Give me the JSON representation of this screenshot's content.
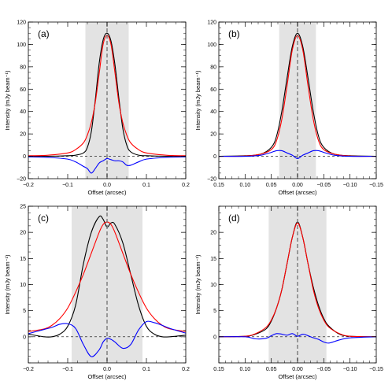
{
  "chart_data": [
    {
      "type": "line",
      "panel_label": "(a)",
      "xlabel": "Offset (arcsec)",
      "ylabel": "Intensity (mJy beam⁻¹)",
      "xlim": [
        -0.2,
        0.2
      ],
      "ylim": [
        -20,
        120
      ],
      "x_ticks": [
        -0.2,
        -0.1,
        0.0,
        0.1,
        0.2
      ],
      "x_tick_labels": [
        "−0.2",
        "−0.1",
        "0.0",
        "0.1",
        "0.2"
      ],
      "y_ticks": [
        -20,
        0,
        20,
        40,
        60,
        80,
        100,
        120
      ],
      "y_tick_labels": [
        "−20",
        "0",
        "20",
        "40",
        "60",
        "80",
        "100",
        "120"
      ],
      "shaded_region": [
        -0.055,
        0.055
      ],
      "vline_x": 0.0,
      "hline_y": 0.0,
      "series": [
        {
          "color": "#000000",
          "x": [
            -0.2,
            -0.15,
            -0.1,
            -0.08,
            -0.06,
            -0.05,
            -0.04,
            -0.03,
            -0.02,
            -0.01,
            0.0,
            0.01,
            0.02,
            0.03,
            0.04,
            0.05,
            0.06,
            0.08,
            0.1,
            0.15,
            0.2
          ],
          "y": [
            0,
            0,
            0.5,
            1,
            3,
            8,
            22,
            50,
            83,
            104,
            110,
            103,
            82,
            52,
            25,
            10,
            4,
            1,
            0.5,
            0,
            0
          ]
        },
        {
          "color": "#ff0000",
          "x": [
            -0.2,
            -0.15,
            -0.1,
            -0.08,
            -0.06,
            -0.05,
            -0.04,
            -0.03,
            -0.02,
            -0.01,
            0.0,
            0.01,
            0.02,
            0.03,
            0.04,
            0.05,
            0.06,
            0.08,
            0.1,
            0.15,
            0.2
          ],
          "y": [
            0.5,
            1,
            3,
            6,
            12,
            19,
            30,
            48,
            74,
            100,
            108,
            100,
            75,
            48,
            30,
            19,
            12,
            6,
            3,
            1,
            0.5
          ]
        },
        {
          "color": "#0000ff",
          "x": [
            -0.2,
            -0.15,
            -0.1,
            -0.08,
            -0.06,
            -0.05,
            -0.04,
            -0.03,
            -0.02,
            -0.01,
            0.0,
            0.01,
            0.02,
            0.03,
            0.04,
            0.05,
            0.06,
            0.08,
            0.1,
            0.15,
            0.2
          ],
          "y": [
            -0.5,
            -1,
            -2.5,
            -5,
            -9,
            -11,
            -15,
            -11,
            -6,
            -4,
            -2,
            -3,
            -4,
            -4,
            -5,
            -8,
            -8,
            -5,
            -2.5,
            -1,
            -0.5
          ]
        }
      ]
    },
    {
      "type": "line",
      "panel_label": "(b)",
      "xlabel": "Offset (arcsec)",
      "ylabel": "Intensity (mJy beam⁻¹)",
      "xlim": [
        0.15,
        -0.15
      ],
      "ylim": [
        -20,
        120
      ],
      "x_ticks": [
        0.15,
        0.1,
        0.05,
        0.0,
        -0.05,
        -0.1,
        -0.15
      ],
      "x_tick_labels": [
        "0.15",
        "0.10",
        "0.05",
        "0.00",
        "−0.05",
        "−0.10",
        "−0.15"
      ],
      "y_ticks": [
        -20,
        0,
        20,
        40,
        60,
        80,
        100,
        120
      ],
      "y_tick_labels": [
        "−20",
        "0",
        "20",
        "40",
        "60",
        "80",
        "100",
        "120"
      ],
      "shaded_region": [
        -0.035,
        0.035
      ],
      "vline_x": 0.0,
      "hline_y": 0.0,
      "series": [
        {
          "color": "#000000",
          "x": [
            0.15,
            0.1,
            0.07,
            0.05,
            0.04,
            0.03,
            0.02,
            0.01,
            0.0,
            -0.01,
            -0.02,
            -0.03,
            -0.04,
            -0.05,
            -0.07,
            -0.1,
            -0.15
          ],
          "y": [
            0,
            0.5,
            2,
            8,
            18,
            40,
            70,
            98,
            110,
            98,
            70,
            40,
            18,
            8,
            2,
            0.5,
            0
          ]
        },
        {
          "color": "#ff0000",
          "x": [
            0.15,
            0.1,
            0.07,
            0.05,
            0.04,
            0.03,
            0.02,
            0.01,
            0.0,
            -0.01,
            -0.02,
            -0.03,
            -0.04,
            -0.05,
            -0.07,
            -0.1,
            -0.15
          ],
          "y": [
            0,
            0.3,
            2,
            6,
            14,
            33,
            63,
            95,
            108,
            95,
            63,
            33,
            14,
            6,
            2,
            0.3,
            0
          ]
        },
        {
          "color": "#0000ff",
          "x": [
            0.15,
            0.1,
            0.07,
            0.05,
            0.04,
            0.03,
            0.02,
            0.01,
            0.0,
            -0.01,
            -0.02,
            -0.03,
            -0.04,
            -0.05,
            -0.07,
            -0.1,
            -0.15
          ],
          "y": [
            0,
            0,
            1,
            3.5,
            5,
            5,
            3,
            1,
            -2,
            1,
            3,
            5,
            5,
            3.5,
            1,
            0,
            0
          ]
        }
      ]
    },
    {
      "type": "line",
      "panel_label": "(c)",
      "xlabel": "Offset (arcsec)",
      "ylabel": "Intensity (mJy beam⁻¹)",
      "xlim": [
        -0.2,
        0.2
      ],
      "ylim": [
        -5,
        25
      ],
      "x_ticks": [
        -0.2,
        -0.1,
        0.0,
        0.1,
        0.2
      ],
      "x_tick_labels": [
        "−0.2",
        "−0.1",
        "0.0",
        "0.1",
        "0.2"
      ],
      "y_ticks": [
        0,
        5,
        10,
        15,
        20,
        25
      ],
      "y_tick_labels": [
        "0",
        "5",
        "10",
        "15",
        "20",
        "25"
      ],
      "shaded_region": [
        -0.09,
        0.09
      ],
      "vline_x": 0.0,
      "hline_y": 0.0,
      "series": [
        {
          "color": "#000000",
          "x": [
            -0.2,
            -0.16,
            -0.14,
            -0.12,
            -0.1,
            -0.08,
            -0.06,
            -0.04,
            -0.02,
            -0.01,
            0.0,
            0.01,
            0.02,
            0.04,
            0.06,
            0.08,
            0.1,
            0.12,
            0.14,
            0.16,
            0.2
          ],
          "y": [
            0.5,
            0,
            0,
            0.5,
            2,
            6,
            14,
            20,
            23,
            22.5,
            21,
            21.8,
            21.5,
            18,
            12,
            6,
            2,
            0.5,
            0,
            0,
            0.3
          ]
        },
        {
          "color": "#ff0000",
          "x": [
            -0.2,
            -0.16,
            -0.14,
            -0.12,
            -0.1,
            -0.08,
            -0.06,
            -0.04,
            -0.02,
            -0.01,
            0.0,
            0.01,
            0.02,
            0.04,
            0.06,
            0.08,
            0.1,
            0.12,
            0.14,
            0.16,
            0.2
          ],
          "y": [
            1,
            1.5,
            2.2,
            3.5,
            5.5,
            8.5,
            12,
            16,
            20,
            21.5,
            22,
            21.5,
            20,
            16,
            12,
            8.5,
            5.5,
            3.5,
            2.2,
            1.5,
            1
          ]
        },
        {
          "color": "#0000ff",
          "x": [
            -0.2,
            -0.16,
            -0.14,
            -0.12,
            -0.1,
            -0.08,
            -0.06,
            -0.04,
            -0.02,
            -0.01,
            0.0,
            0.01,
            0.02,
            0.04,
            0.06,
            0.08,
            0.1,
            0.12,
            0.14,
            0.16,
            0.2
          ],
          "y": [
            0.6,
            1.4,
            1.8,
            2.4,
            2.5,
            1.6,
            -1.5,
            -3.8,
            -2.5,
            -1,
            -0.3,
            -0.5,
            -1,
            -2.2,
            -1.5,
            1.3,
            2.9,
            2.7,
            2.2,
            1.6,
            0.7
          ]
        }
      ]
    },
    {
      "type": "line",
      "panel_label": "(d)",
      "xlabel": "Offset (arcsec)",
      "ylabel": "Intensity (mJy beam⁻¹)",
      "xlim": [
        0.15,
        -0.15
      ],
      "ylim": [
        -5,
        25
      ],
      "x_ticks": [
        0.15,
        0.1,
        0.05,
        0.0,
        -0.05,
        -0.1,
        -0.15
      ],
      "x_tick_labels": [
        "0.15",
        "0.10",
        "0.05",
        "0.00",
        "−0.05",
        "−0.10",
        "−0.15"
      ],
      "y_ticks": [
        0,
        5,
        10,
        15,
        20
      ],
      "y_tick_labels": [
        "0",
        "5",
        "10",
        "15",
        "20"
      ],
      "shaded_region": [
        -0.055,
        0.055
      ],
      "vline_x": 0.0,
      "hline_y": 0.0,
      "series": [
        {
          "color": "#000000",
          "x": [
            0.15,
            0.1,
            0.08,
            0.06,
            0.05,
            0.04,
            0.03,
            0.02,
            0.01,
            0.0,
            -0.01,
            -0.02,
            -0.03,
            -0.04,
            -0.05,
            -0.06,
            -0.08,
            -0.1,
            -0.15
          ],
          "y": [
            0,
            0.1,
            0.5,
            1.5,
            3,
            5.5,
            9,
            14,
            19,
            22,
            19,
            14,
            9.5,
            6,
            3.5,
            2,
            0.5,
            0.1,
            0
          ]
        },
        {
          "color": "#ff0000",
          "x": [
            0.15,
            0.1,
            0.08,
            0.06,
            0.05,
            0.04,
            0.03,
            0.02,
            0.01,
            0.0,
            -0.01,
            -0.02,
            -0.03,
            -0.04,
            -0.05,
            -0.06,
            -0.08,
            -0.1,
            -0.15
          ],
          "y": [
            0,
            0.1,
            0.6,
            1.8,
            3.2,
            5.5,
            9,
            14,
            19,
            21.8,
            19,
            14,
            9,
            5.5,
            3.2,
            1.8,
            0.6,
            0.1,
            0
          ]
        },
        {
          "color": "#0000ff",
          "x": [
            0.15,
            0.1,
            0.08,
            0.06,
            0.05,
            0.04,
            0.03,
            0.02,
            0.01,
            0.0,
            -0.01,
            -0.02,
            -0.03,
            -0.04,
            -0.05,
            -0.06,
            -0.08,
            -0.1,
            -0.15
          ],
          "y": [
            0,
            0,
            -0.4,
            -0.3,
            0.2,
            0.6,
            0.5,
            0.3,
            0.6,
            0.1,
            0.5,
            0.2,
            -0.2,
            -0.5,
            -1,
            -1.2,
            -0.6,
            -0.2,
            0
          ]
        }
      ]
    }
  ]
}
